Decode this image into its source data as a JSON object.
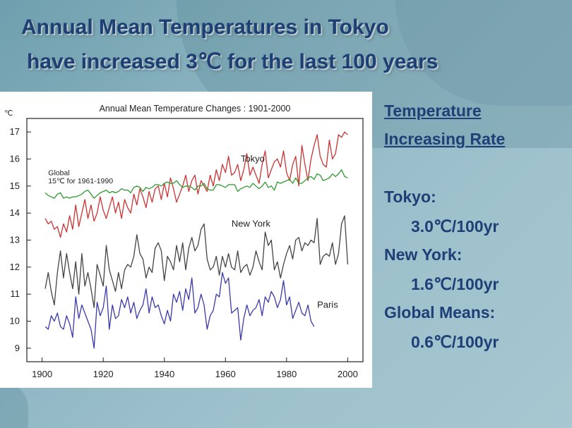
{
  "slide": {
    "title_line1": "Annual Mean Temperatures in Tokyo",
    "title_line2": "have increased 3℃   for the last 100 years"
  },
  "panel": {
    "heading_line1": "Temperature",
    "heading_line2": "Increasing Rate",
    "tokyo_label": "Tokyo:",
    "tokyo_rate": "3.0℃/100yr",
    "newyork_label": "New York:",
    "newyork_rate": "1.6℃/100yr",
    "global_label": "Global Means:",
    "global_rate": "0.6℃/100yr"
  },
  "colors": {
    "title": "#1d3f73",
    "tokyo": "#cc3333",
    "global": "#2e9a2e",
    "newyork": "#444444",
    "paris": "#3a3aaa"
  },
  "chart_data": {
    "type": "line",
    "title": "Annual Mean Temperature Changes : 1901-2000",
    "ylabel": "℃",
    "xlim": [
      1895,
      2005
    ],
    "ylim": [
      8.5,
      17.5
    ],
    "xticks": [
      1900,
      1920,
      1940,
      1960,
      1980,
      2000
    ],
    "yticks": [
      9,
      10,
      11,
      12,
      13,
      14,
      15,
      16,
      17
    ],
    "annotations": [
      {
        "text": "Tokyo",
        "x": 1965,
        "y": 15.9
      },
      {
        "text": "Global",
        "x": 1902,
        "y": 15.4
      },
      {
        "text": "15℃ for 1961-1990",
        "x": 1902,
        "y": 15.1
      },
      {
        "text": "New York",
        "x": 1962,
        "y": 13.5
      },
      {
        "text": "Paris",
        "x": 1990,
        "y": 10.5
      }
    ],
    "series": [
      {
        "name": "Tokyo",
        "color": "#cc3333",
        "x": [
          1901,
          1902,
          1903,
          1904,
          1905,
          1906,
          1907,
          1908,
          1909,
          1910,
          1911,
          1912,
          1913,
          1914,
          1915,
          1916,
          1917,
          1918,
          1919,
          1920,
          1921,
          1922,
          1923,
          1924,
          1925,
          1926,
          1927,
          1928,
          1929,
          1930,
          1931,
          1932,
          1933,
          1934,
          1935,
          1936,
          1937,
          1938,
          1939,
          1940,
          1941,
          1942,
          1943,
          1944,
          1945,
          1946,
          1947,
          1948,
          1949,
          1950,
          1951,
          1952,
          1953,
          1954,
          1955,
          1956,
          1957,
          1958,
          1959,
          1960,
          1961,
          1962,
          1963,
          1964,
          1965,
          1966,
          1967,
          1968,
          1969,
          1970,
          1971,
          1972,
          1973,
          1974,
          1975,
          1976,
          1977,
          1978,
          1979,
          1980,
          1981,
          1982,
          1983,
          1984,
          1985,
          1986,
          1987,
          1988,
          1989,
          1990,
          1991,
          1992,
          1993,
          1994,
          1995,
          1996,
          1997,
          1998,
          1999,
          2000
        ],
        "values": [
          13.8,
          13.6,
          13.7,
          13.4,
          13.5,
          13.1,
          13.6,
          13.3,
          13.9,
          13.4,
          14.3,
          13.5,
          14.0,
          14.5,
          13.8,
          14.3,
          13.7,
          14.0,
          14.6,
          14.1,
          13.8,
          14.2,
          14.6,
          14.0,
          14.4,
          13.8,
          14.5,
          14.2,
          14.0,
          14.7,
          14.3,
          14.9,
          14.6,
          14.2,
          14.8,
          14.4,
          14.9,
          15.0,
          14.5,
          15.1,
          14.6,
          15.3,
          14.9,
          14.4,
          14.7,
          15.0,
          15.4,
          14.8,
          15.2,
          15.4,
          14.7,
          15.2,
          15.0,
          14.8,
          15.4,
          15.0,
          15.6,
          15.2,
          15.8,
          15.5,
          16.1,
          15.4,
          15.5,
          15.8,
          15.2,
          15.6,
          16.2,
          15.4,
          15.7,
          15.4,
          15.1,
          15.8,
          16.3,
          15.3,
          15.6,
          15.9,
          16.0,
          15.7,
          16.3,
          15.5,
          15.2,
          15.8,
          16.1,
          15.0,
          16.5,
          15.8,
          15.2,
          16.0,
          16.5,
          16.9,
          16.1,
          15.8,
          15.7,
          16.7,
          16.0,
          16.2,
          16.9,
          16.8,
          17.0,
          16.9
        ]
      },
      {
        "name": "Global",
        "color": "#2e9a2e",
        "x": [
          1901,
          1902,
          1903,
          1904,
          1905,
          1906,
          1907,
          1908,
          1909,
          1910,
          1911,
          1912,
          1913,
          1914,
          1915,
          1916,
          1917,
          1918,
          1919,
          1920,
          1921,
          1922,
          1923,
          1924,
          1925,
          1926,
          1927,
          1928,
          1929,
          1930,
          1931,
          1932,
          1933,
          1934,
          1935,
          1936,
          1937,
          1938,
          1939,
          1940,
          1941,
          1942,
          1943,
          1944,
          1945,
          1946,
          1947,
          1948,
          1949,
          1950,
          1951,
          1952,
          1953,
          1954,
          1955,
          1956,
          1957,
          1958,
          1959,
          1960,
          1961,
          1962,
          1963,
          1964,
          1965,
          1966,
          1967,
          1968,
          1969,
          1970,
          1971,
          1972,
          1973,
          1974,
          1975,
          1976,
          1977,
          1978,
          1979,
          1980,
          1981,
          1982,
          1983,
          1984,
          1985,
          1986,
          1987,
          1988,
          1989,
          1990,
          1991,
          1992,
          1993,
          1994,
          1995,
          1996,
          1997,
          1998,
          1999,
          2000
        ],
        "values": [
          14.75,
          14.65,
          14.6,
          14.55,
          14.7,
          14.75,
          14.55,
          14.6,
          14.55,
          14.6,
          14.6,
          14.65,
          14.7,
          14.8,
          14.85,
          14.7,
          14.55,
          14.65,
          14.75,
          14.8,
          14.85,
          14.75,
          14.8,
          14.75,
          14.8,
          14.9,
          14.85,
          14.85,
          14.75,
          14.95,
          15.0,
          14.95,
          14.8,
          14.95,
          14.9,
          14.95,
          15.05,
          15.05,
          15.0,
          15.1,
          15.15,
          15.1,
          15.1,
          15.2,
          15.05,
          14.95,
          15.0,
          15.0,
          14.95,
          14.85,
          15.0,
          15.0,
          15.1,
          14.9,
          14.85,
          14.85,
          15.05,
          15.05,
          15.0,
          14.95,
          15.05,
          15.05,
          15.05,
          14.8,
          14.9,
          14.95,
          15.0,
          14.95,
          15.1,
          15.0,
          14.9,
          15.0,
          15.15,
          14.95,
          15.0,
          14.85,
          15.15,
          15.1,
          15.15,
          15.2,
          15.25,
          15.1,
          15.3,
          15.1,
          15.1,
          15.2,
          15.3,
          15.35,
          15.25,
          15.45,
          15.4,
          15.2,
          15.25,
          15.3,
          15.45,
          15.35,
          15.45,
          15.6,
          15.35,
          15.3
        ]
      },
      {
        "name": "New York",
        "color": "#444444",
        "x": [
          1901,
          1902,
          1903,
          1904,
          1905,
          1906,
          1907,
          1908,
          1909,
          1910,
          1911,
          1912,
          1913,
          1914,
          1915,
          1916,
          1917,
          1918,
          1919,
          1920,
          1921,
          1922,
          1923,
          1924,
          1925,
          1926,
          1927,
          1928,
          1929,
          1930,
          1931,
          1932,
          1933,
          1934,
          1935,
          1936,
          1937,
          1938,
          1939,
          1940,
          1941,
          1942,
          1943,
          1944,
          1945,
          1946,
          1947,
          1948,
          1949,
          1950,
          1951,
          1952,
          1953,
          1954,
          1955,
          1956,
          1957,
          1958,
          1959,
          1960,
          1961,
          1962,
          1963,
          1964,
          1965,
          1966,
          1967,
          1968,
          1969,
          1970,
          1971,
          1972,
          1973,
          1974,
          1975,
          1976,
          1977,
          1978,
          1979,
          1980,
          1981,
          1982,
          1983,
          1984,
          1985,
          1986,
          1987,
          1988,
          1989,
          1990,
          1991,
          1992,
          1993,
          1994,
          1995,
          1996,
          1997,
          1998,
          1999,
          2000
        ],
        "values": [
          11.2,
          11.8,
          11.1,
          10.6,
          11.8,
          12.6,
          11.6,
          12.5,
          11.8,
          11.2,
          12.2,
          11.0,
          12.5,
          11.3,
          11.8,
          11.2,
          10.5,
          12.1,
          11.7,
          11.3,
          12.8,
          11.9,
          11.5,
          11.1,
          11.8,
          11.2,
          11.9,
          12.1,
          12.0,
          12.4,
          13.2,
          12.5,
          12.3,
          11.6,
          12.0,
          11.8,
          12.7,
          12.9,
          12.6,
          11.5,
          12.4,
          12.2,
          11.9,
          12.8,
          12.2,
          12.9,
          11.9,
          12.7,
          13.1,
          12.6,
          12.8,
          13.4,
          13.6,
          12.3,
          11.9,
          12.0,
          12.4,
          11.7,
          12.4,
          12.0,
          12.5,
          12.0,
          11.9,
          12.6,
          11.8,
          12.0,
          12.1,
          11.7,
          12.0,
          12.6,
          12.2,
          11.9,
          13.3,
          12.8,
          13.0,
          11.9,
          12.2,
          11.6,
          12.1,
          12.5,
          12.8,
          12.3,
          13.0,
          13.1,
          12.6,
          12.9,
          12.8,
          13.0,
          12.9,
          13.8,
          12.1,
          12.4,
          12.5,
          12.4,
          12.9,
          12.1,
          12.5,
          13.6,
          13.9,
          12.1
        ]
      },
      {
        "name": "Paris",
        "color": "#3a3aaa",
        "x": [
          1901,
          1902,
          1903,
          1904,
          1905,
          1906,
          1907,
          1908,
          1909,
          1910,
          1911,
          1912,
          1913,
          1914,
          1915,
          1916,
          1917,
          1918,
          1919,
          1920,
          1921,
          1922,
          1923,
          1924,
          1925,
          1926,
          1927,
          1928,
          1929,
          1930,
          1931,
          1932,
          1933,
          1934,
          1935,
          1936,
          1937,
          1938,
          1939,
          1940,
          1941,
          1942,
          1943,
          1944,
          1945,
          1946,
          1947,
          1948,
          1949,
          1950,
          1951,
          1952,
          1953,
          1954,
          1955,
          1956,
          1957,
          1958,
          1959,
          1960,
          1961,
          1962,
          1963,
          1964,
          1965,
          1966,
          1967,
          1968,
          1969,
          1970,
          1971,
          1972,
          1973,
          1974,
          1975,
          1976,
          1977,
          1978,
          1979,
          1980,
          1981,
          1982,
          1983,
          1984,
          1985,
          1986,
          1987,
          1988,
          1989
        ],
        "values": [
          9.8,
          9.7,
          10.2,
          10.0,
          10.3,
          9.8,
          9.7,
          10.2,
          9.9,
          9.4,
          10.9,
          10.1,
          10.6,
          10.3,
          10.0,
          9.7,
          9.0,
          10.7,
          10.2,
          10.5,
          11.3,
          9.7,
          10.6,
          10.1,
          10.2,
          10.8,
          10.5,
          10.9,
          10.3,
          10.7,
          10.1,
          10.4,
          10.6,
          11.2,
          10.3,
          10.9,
          10.5,
          10.6,
          10.2,
          9.9,
          10.4,
          10.0,
          11.0,
          10.7,
          11.1,
          10.4,
          11.2,
          10.8,
          11.6,
          10.3,
          10.5,
          11.0,
          10.6,
          9.7,
          10.2,
          10.4,
          11.0,
          10.9,
          11.8,
          11.4,
          11.6,
          10.3,
          10.4,
          10.5,
          9.3,
          10.1,
          10.6,
          10.2,
          10.4,
          10.5,
          10.8,
          10.2,
          10.9,
          10.7,
          11.1,
          10.9,
          10.5,
          10.8,
          11.5,
          10.6,
          10.9,
          10.1,
          10.4,
          10.7,
          10.3,
          10.2,
          10.6,
          10.0,
          9.8
        ]
      }
    ]
  }
}
